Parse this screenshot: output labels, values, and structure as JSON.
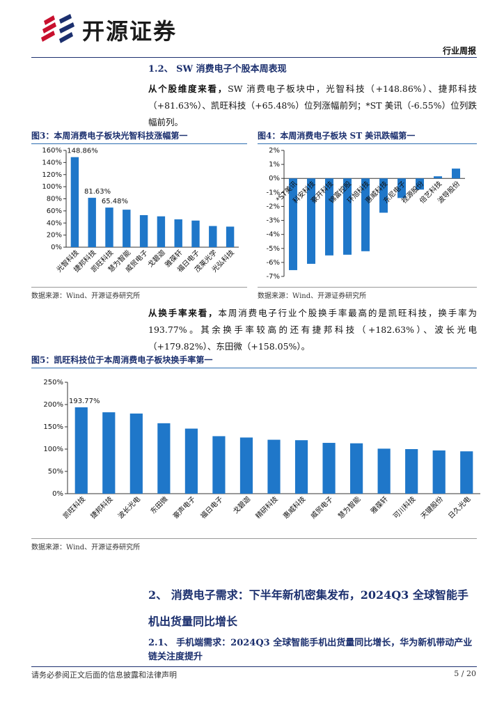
{
  "header": {
    "brand": "开源证券",
    "report_type": "行业周报"
  },
  "section_1_2": {
    "heading": "1.2、 SW 消费电子个股本周表现",
    "paragraph_1": {
      "lead": "从个股维度来看，",
      "text": "SW 消费电子板块中，光智科技（+148.86%）、捷邦科技（+81.63%）、凯旺科技（+65.48%）位列涨幅前列；*ST 美讯（-6.55%）位列跌幅前列。"
    },
    "paragraph_2": {
      "lead": "从换手率来看，",
      "text": "本周消费电子行业个股换手率最高的是凯旺科技，换手率为 193.77%。其余换手率较高的还有捷邦科技（+182.63%）、波长光电（+179.82%）、东田微（+158.05%）。"
    }
  },
  "chart_data": [
    {
      "type": "bar",
      "title": "图3：本周消费电子板块光智科技涨幅第一",
      "source": "数据来源：Wind、开源证券研究所",
      "color": "#1f77c9",
      "categories": [
        "光智科技",
        "捷邦科技",
        "凯旺科技",
        "慧为智能",
        "威贸电子",
        "戈碧迦",
        "雅葆轩",
        "福日电子",
        "茂莱光学",
        "光弘科技"
      ],
      "values": [
        148.86,
        81.63,
        65.48,
        62,
        53,
        51,
        46,
        44,
        35,
        34
      ],
      "value_labels": [
        "148.86%",
        "81.63%",
        "65.48%",
        null,
        null,
        null,
        null,
        null,
        null,
        null
      ],
      "ylim": [
        0,
        160
      ],
      "yticks": [
        {
          "value": 0,
          "label": "0%"
        },
        {
          "value": 20,
          "label": "20%"
        },
        {
          "value": 40,
          "label": "40%"
        },
        {
          "value": 60,
          "label": "60%"
        },
        {
          "value": 80,
          "label": "80%"
        },
        {
          "value": 100,
          "label": "100%"
        },
        {
          "value": 120,
          "label": "120%"
        },
        {
          "value": 140,
          "label": "140%"
        },
        {
          "value": 160,
          "label": "160%"
        }
      ]
    },
    {
      "type": "bar",
      "title": "图4：本周消费电子板块 ST 美讯跌幅第一",
      "source": "数据来源：Wind、开源证券研究所",
      "color": "#1f77c9",
      "categories": [
        "*ST美讯",
        "科安科技",
        "豪开科技",
        "锦富控股",
        "环旭科技",
        "惠威科技",
        "东尼电子",
        "视源股份",
        "倍艺科技",
        "波导股份"
      ],
      "values": [
        -6.55,
        -6.1,
        -5.5,
        -5.45,
        -5.2,
        -2.45,
        -1.4,
        -0.8,
        0.15,
        0.7
      ],
      "ylim": [
        -7,
        2
      ],
      "yticks": [
        {
          "value": -7,
          "label": "-7%"
        },
        {
          "value": -6,
          "label": "-6%"
        },
        {
          "value": -5,
          "label": "-5%"
        },
        {
          "value": -4,
          "label": "-4%"
        },
        {
          "value": -3,
          "label": "-3%"
        },
        {
          "value": -2,
          "label": "-2%"
        },
        {
          "value": -1,
          "label": "-1%"
        },
        {
          "value": 0,
          "label": "0%"
        },
        {
          "value": 1,
          "label": "1%"
        },
        {
          "value": 2,
          "label": "2%"
        }
      ]
    },
    {
      "type": "bar",
      "title": "图5：凯旺科技位于本周消费电子板块换手率第一",
      "source": "数据来源：Wind、开源证券研究所",
      "color": "#1f77c9",
      "categories": [
        "凯旺科技",
        "捷邦科技",
        "波长光电",
        "东田微",
        "豪声电子",
        "福日电子",
        "戈碧迦",
        "精研科技",
        "惠威科技",
        "威贸电子",
        "慧为智能",
        "雅葆轩",
        "可川科技",
        "天键股份",
        "日久光电"
      ],
      "values": [
        193.77,
        182.63,
        179.82,
        158.05,
        146,
        129,
        126,
        121,
        120,
        114,
        113,
        101,
        100,
        97,
        95
      ],
      "value_labels": [
        "193.77%",
        null,
        null,
        null,
        null,
        null,
        null,
        null,
        null,
        null,
        null,
        null,
        null,
        null,
        null
      ],
      "ylim": [
        0,
        250
      ],
      "yticks": [
        {
          "value": 0,
          "label": "0%"
        },
        {
          "value": 50,
          "label": "50%"
        },
        {
          "value": 100,
          "label": "100%"
        },
        {
          "value": 150,
          "label": "150%"
        },
        {
          "value": 200,
          "label": "200%"
        },
        {
          "value": 250,
          "label": "250%"
        }
      ]
    }
  ],
  "section_2": {
    "heading": "2、 消费电子需求：下半年新机密集发布，2024Q3 全球智能手机出货量同比增长",
    "subheading": "2.1、 手机端需求：2024Q3 全球智能手机出货量同比增长，华为新机带动产业链关注度提升"
  },
  "footer": {
    "disclaimer": "请务必参阅正文后面的信息披露和法律声明",
    "page": "5 / 20"
  }
}
